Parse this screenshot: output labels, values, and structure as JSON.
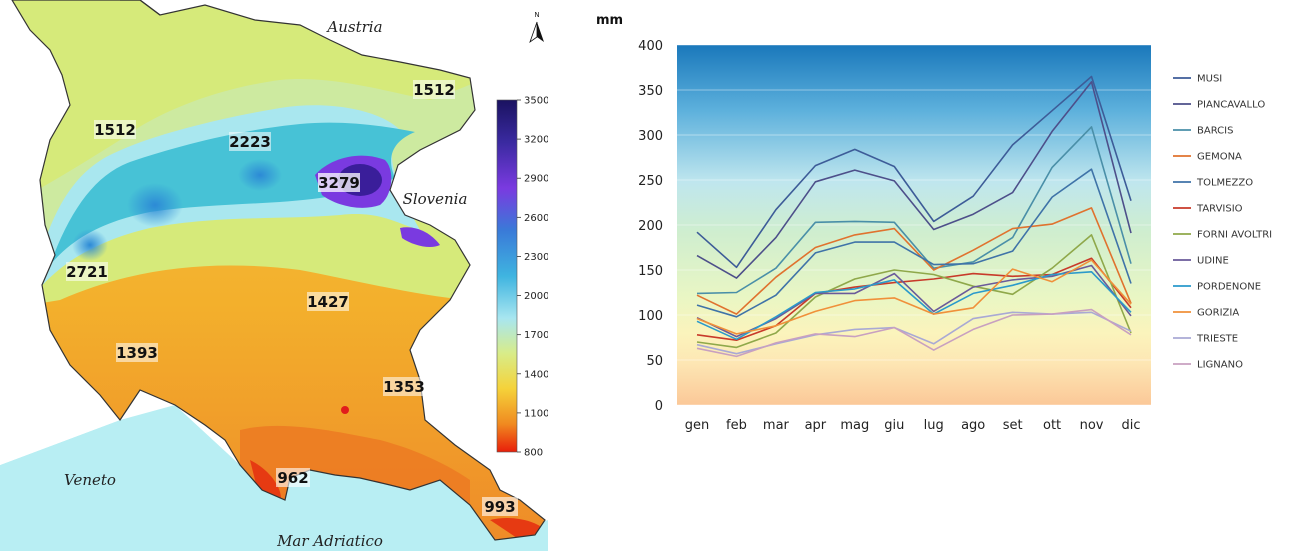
{
  "map": {
    "region_labels": {
      "austria": "Austria",
      "slovenia": "Slovenia",
      "veneto": "Veneto",
      "sea": "Mar Adriatico",
      "north": "N"
    },
    "value_labels": [
      "1512",
      "1512",
      "2223",
      "3279",
      "2721",
      "1427",
      "1393",
      "1353",
      "962",
      "993"
    ],
    "colorbar_ticks": [
      "3500",
      "3200",
      "2900",
      "2600",
      "2300",
      "2000",
      "1700",
      "1400",
      "1100",
      "800"
    ]
  },
  "chart_data": {
    "type": "line",
    "unit_label": "mm",
    "ylim": [
      0,
      400
    ],
    "y_ticks": [
      0,
      50,
      100,
      150,
      200,
      250,
      300,
      350,
      400
    ],
    "categories": [
      "gen",
      "feb",
      "mar",
      "apr",
      "mag",
      "giu",
      "lug",
      "ago",
      "set",
      "ott",
      "nov",
      "dic"
    ],
    "grid": true,
    "legend_position": "right",
    "series": [
      {
        "name": "MUSI",
        "color": "#3d5c98",
        "values": [
          192,
          153,
          217,
          266,
          284,
          265,
          204,
          232,
          289,
          327,
          365,
          227
        ]
      },
      {
        "name": "PIANCAVALLO",
        "color": "#4d4f8a",
        "values": [
          166,
          141,
          186,
          248,
          261,
          249,
          195,
          212,
          236,
          304,
          359,
          191
        ]
      },
      {
        "name": "BARCIS",
        "color": "#4a8fa8",
        "values": [
          124,
          125,
          152,
          203,
          204,
          203,
          152,
          159,
          186,
          264,
          309,
          157
        ]
      },
      {
        "name": "GEMONA",
        "color": "#e0722e",
        "values": [
          122,
          101,
          142,
          175,
          189,
          196,
          150,
          172,
          196,
          201,
          219,
          113
        ]
      },
      {
        "name": "TOLMEZZO",
        "color": "#3f73a8",
        "values": [
          111,
          98,
          122,
          169,
          181,
          181,
          156,
          157,
          171,
          231,
          262,
          135
        ]
      },
      {
        "name": "TARVISIO",
        "color": "#c83a2a",
        "values": [
          78,
          72,
          88,
          124,
          131,
          136,
          140,
          146,
          143,
          145,
          163,
          108
        ]
      },
      {
        "name": "FORNI AVOLTRI",
        "color": "#8fa84a",
        "values": [
          70,
          64,
          80,
          120,
          140,
          150,
          145,
          132,
          123,
          152,
          189,
          80
        ]
      },
      {
        "name": "UDINE",
        "color": "#6a5a9a",
        "values": [
          97,
          76,
          96,
          124,
          124,
          146,
          104,
          131,
          139,
          143,
          155,
          99
        ]
      },
      {
        "name": "PORDENONE",
        "color": "#2a9acb",
        "values": [
          93,
          73,
          98,
          125,
          129,
          139,
          101,
          124,
          133,
          145,
          148,
          103
        ]
      },
      {
        "name": "GORIZIA",
        "color": "#f0903a",
        "values": [
          96,
          79,
          88,
          104,
          116,
          119,
          101,
          108,
          151,
          137,
          161,
          112
        ]
      },
      {
        "name": "TRIESTE",
        "color": "#a9a9d4",
        "values": [
          67,
          57,
          68,
          78,
          84,
          86,
          68,
          96,
          103,
          101,
          103,
          82
        ]
      },
      {
        "name": "LIGNANO",
        "color": "#c8a0c0",
        "values": [
          63,
          54,
          69,
          79,
          76,
          86,
          61,
          84,
          100,
          101,
          106,
          78
        ]
      }
    ]
  }
}
